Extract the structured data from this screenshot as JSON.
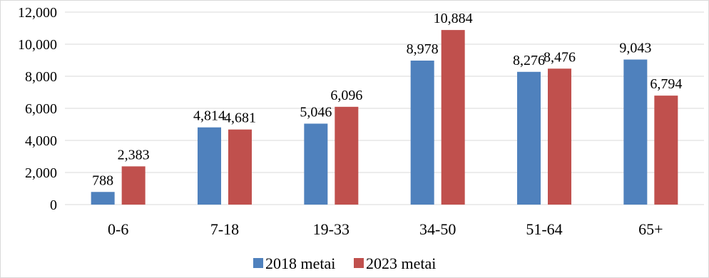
{
  "chart_data": {
    "type": "bar",
    "title": "",
    "xlabel": "",
    "ylabel": "",
    "categories": [
      "0-6",
      "7-18",
      "19-33",
      "34-50",
      "51-64",
      "65+"
    ],
    "series": [
      {
        "name": "2018 metai",
        "values": [
          788,
          4814,
          5046,
          8978,
          8276,
          9043
        ],
        "color": "#4F81BD"
      },
      {
        "name": "2023 metai",
        "values": [
          2383,
          4681,
          6096,
          10884,
          8476,
          6794
        ],
        "color": "#C0504D"
      }
    ],
    "value_labels": [
      [
        "788",
        "4,814",
        "5,046",
        "8,978",
        "8,276",
        "9,043"
      ],
      [
        "2,383",
        "4,681",
        "6,096",
        "10,884",
        "8,476",
        "6,794"
      ]
    ],
    "ylim": [
      0,
      12000
    ],
    "yticks": [
      0,
      2000,
      4000,
      6000,
      8000,
      10000,
      12000
    ],
    "ytick_labels": [
      "0",
      "2,000",
      "4,000",
      "6,000",
      "8,000",
      "10,000",
      "12,000"
    ],
    "grid": true,
    "legend_position": "bottom"
  }
}
